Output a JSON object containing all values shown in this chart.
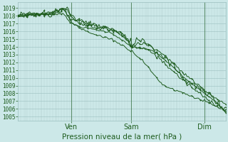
{
  "bg_color": "#cce8e8",
  "grid_color_major": "#9bbfbf",
  "grid_color_minor": "#b5d4d4",
  "line_color": "#1e5c1e",
  "ylim": [
    1004.5,
    1019.8
  ],
  "xlim": [
    0,
    1
  ],
  "ylabel_values": [
    1005,
    1006,
    1007,
    1008,
    1009,
    1010,
    1011,
    1012,
    1013,
    1014,
    1015,
    1016,
    1017,
    1018,
    1019
  ],
  "xlabel": "Pression niveau de la mer( hPa )",
  "xlabel_fontsize": 7.5,
  "tick_fontsize": 5.5,
  "day_labels": [
    "Ven",
    "Sam",
    "Dim"
  ],
  "day_positions": [
    0.255,
    0.545,
    0.895
  ]
}
